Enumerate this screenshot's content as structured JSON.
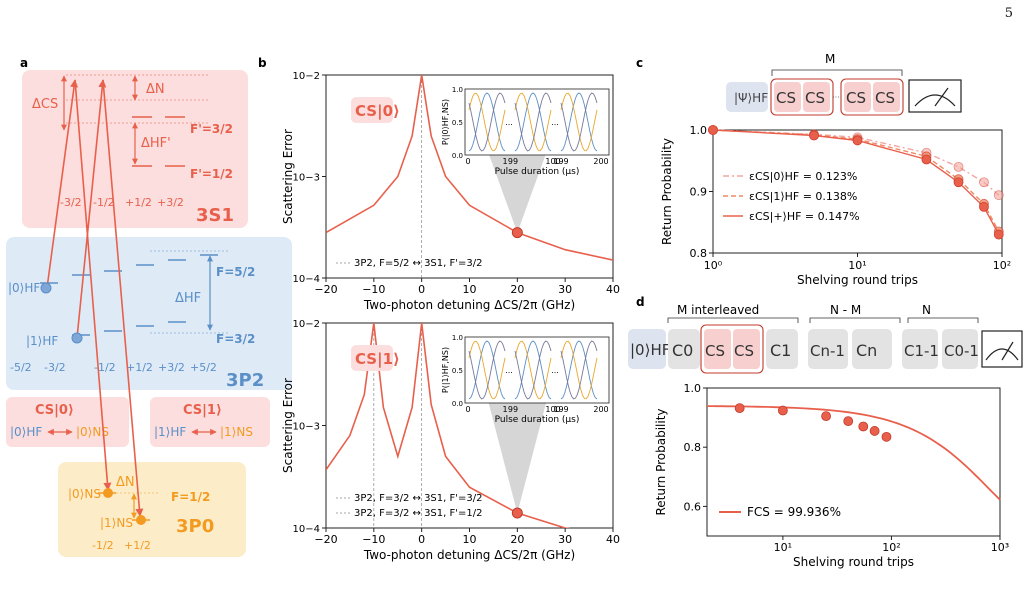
{
  "page_number": "5",
  "panel_labels": {
    "a": "a",
    "b": "b",
    "c": "c",
    "d": "d"
  },
  "colors": {
    "red": "#e8604c",
    "red_light": "#fbdedd",
    "blue": "#5b8fc7",
    "blue_light": "#deebf7",
    "orange": "#f39b21",
    "orange_light": "#fdecc8",
    "gray_box": "#e3e3e3",
    "hf_box": "#dde3ef"
  },
  "panel_a": {
    "s1_label": "3S1",
    "p2_label": "3P2",
    "p0_label": "3P0",
    "delta_cs": "ΔCS",
    "delta_n": "ΔN",
    "delta_hf_prime": "ΔHF'",
    "delta_hf": "ΔHF",
    "f_prime_32": "F'=3/2",
    "f_prime_12": "F'=1/2",
    "f_52": "F=5/2",
    "f_32": "F=3/2",
    "f_12": "F=1/2",
    "s1_mf": [
      "-3/2",
      "-1/2",
      "+1/2",
      "+3/2"
    ],
    "p2_mf": [
      "-5/2",
      "-3/2",
      "-1/2",
      "+1/2",
      "+3/2",
      "+5/2"
    ],
    "p0_mf": [
      "-1/2",
      "+1/2"
    ],
    "ket0_hf": "|0⟩HF",
    "ket1_hf": "|1⟩HF",
    "ket0_ns": "|0⟩NS",
    "ket1_ns": "|1⟩NS",
    "cs0": "CS|0⟩",
    "cs1": "CS|1⟩"
  },
  "panel_b": {
    "ylabel": "Scattering Error",
    "xlabel": "Two-photon detuning ΔCS/2π (GHz)",
    "x_ticks": [
      "−20",
      "−10",
      "0",
      "10",
      "20",
      "30",
      "40"
    ],
    "y_ticks": [
      "10−4",
      "10−3",
      "10−2"
    ],
    "top_tag": "CS|0⟩",
    "bottom_tag": "CS|1⟩",
    "top_legend": [
      "3P2, F=5/2 ↔ 3S1, F'=3/2"
    ],
    "bottom_legend": [
      "3P2, F=3/2 ↔ 3S1, F'=3/2",
      "3P2, F=3/2 ↔ 3S1, F'=1/2"
    ],
    "inset_top_ylabel": "P(|0⟩HF,NS)",
    "inset_bottom_ylabel": "P(|1⟩HF,NS)",
    "inset_xlabel": "Pulse duration (μs)",
    "inset_xticks": [
      "0",
      "1",
      "99",
      "100",
      "199",
      "200"
    ],
    "inset_yticks": [
      "0.0",
      "0.5",
      "1.0"
    ],
    "ellipsis": "..."
  },
  "panel_c": {
    "psi": "|Ψ⟩HF",
    "m_label": "M",
    "cs": "CS",
    "ylabel": "Return Probability",
    "xlabel": "Shelving round trips",
    "y_ticks": [
      "0.8",
      "0.9",
      "1.0"
    ],
    "x_ticks": [
      "10^0",
      "10^1",
      "10^2"
    ],
    "legend": [
      "εCS|0⟩HF = 0.123%",
      "εCS|1⟩HF = 0.138%",
      "εCS|+⟩HF = 0.147%"
    ]
  },
  "panel_d": {
    "ket0": "|0⟩HF",
    "m_interleaved": "M interleaved",
    "n_minus_m": "N - M",
    "n_label": "N",
    "boxes": [
      "C0",
      "CS",
      "CS",
      "C1",
      "Cn-1",
      "Cn",
      "C1-1",
      "C0-1"
    ],
    "ylabel": "Return Probability",
    "xlabel": "Shelving round trips",
    "y_ticks": [
      "0.6",
      "0.8",
      "1.0"
    ],
    "x_ticks": [
      "10^1",
      "10^2",
      "10^3"
    ],
    "legend": "FCS = 99.936%"
  },
  "chart_data": [
    {
      "type": "line",
      "title": "",
      "xlabel": "Two-photon detuning ΔCS/2π (GHz)",
      "ylabel": "Scattering Error",
      "xlim": [
        -20,
        40
      ],
      "ylim": [
        0.0001,
        0.01
      ],
      "yscale": "log",
      "series": [
        {
          "x": [
            -20,
            -10,
            -5,
            -2,
            -1,
            0,
            1,
            2,
            5,
            10,
            20,
            30,
            40
          ],
          "values": [
            0.00028,
            0.00052,
            0.001,
            0.0025,
            0.005,
            0.01,
            0.005,
            0.0025,
            0.001,
            0.00052,
            0.00028,
            0.00019,
            0.00015
          ]
        }
      ],
      "highlight": {
        "x": 20,
        "y": 0.00028
      },
      "vlines": [
        0
      ]
    },
    {
      "type": "line",
      "title": "",
      "xlabel": "Two-photon detuning ΔCS/2π (GHz)",
      "ylabel": "Scattering Error",
      "xlim": [
        -20,
        40
      ],
      "ylim": [
        0.0001,
        0.01
      ],
      "yscale": "log",
      "series": [
        {
          "x": [
            -20,
            -15,
            -12,
            -10,
            -8,
            -5,
            -2,
            0,
            2,
            5,
            10,
            20,
            30,
            40
          ],
          "values": [
            0.00037,
            0.0008,
            0.002,
            0.01,
            0.0015,
            0.0005,
            0.0015,
            0.01,
            0.0016,
            0.0005,
            0.00025,
            0.00014,
            0.0001,
            8.5e-05
          ]
        }
      ],
      "highlight": {
        "x": 20,
        "y": 0.00014
      },
      "vlines": [
        -10,
        0
      ]
    },
    {
      "type": "scatter",
      "xlabel": "Shelving round trips",
      "ylabel": "Return Probability",
      "xscale": "log",
      "xlim": [
        1,
        100
      ],
      "ylim": [
        0.8,
        1.0
      ],
      "series": [
        {
          "name": "εCS|0⟩HF = 0.123%",
          "x": [
            1,
            5,
            10,
            30,
            50,
            75,
            95
          ],
          "values": [
            1.0,
            0.993,
            0.988,
            0.963,
            0.94,
            0.915,
            0.894
          ]
        },
        {
          "name": "εCS|1⟩HF = 0.138%",
          "x": [
            1,
            5,
            10,
            30,
            50,
            75,
            95
          ],
          "values": [
            1.0,
            0.992,
            0.985,
            0.957,
            0.92,
            0.88,
            0.835
          ]
        },
        {
          "name": "εCS|+⟩HF = 0.147%",
          "x": [
            1,
            5,
            10,
            30,
            50,
            75,
            95
          ],
          "values": [
            1.0,
            0.991,
            0.983,
            0.952,
            0.915,
            0.875,
            0.83
          ]
        }
      ]
    },
    {
      "type": "scatter",
      "xlabel": "Shelving round trips",
      "ylabel": "Return Probability",
      "xscale": "log",
      "xlim": [
        2,
        1000
      ],
      "ylim": [
        0.5,
        1.0
      ],
      "series": [
        {
          "name": "FCS = 99.936%",
          "x": [
            4,
            10,
            25,
            40,
            55,
            70,
            90
          ],
          "values": [
            0.932,
            0.924,
            0.905,
            0.888,
            0.87,
            0.855,
            0.835
          ]
        }
      ]
    }
  ]
}
